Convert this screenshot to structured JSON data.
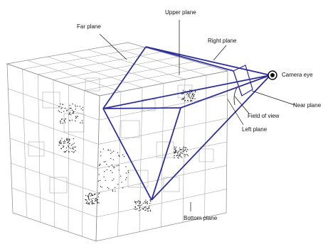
{
  "labels": {
    "upper_plane": "Upper plane",
    "far_plane": "Far plane",
    "right_plane": "Right plane",
    "camera_eye": "Camera eye",
    "near_plane": "Near plane",
    "field_of_view": "Field of view",
    "left_plane": "Left plane",
    "bottom_plane": "Bottom plane"
  },
  "colors": {
    "frustum": "#2e2f9a",
    "grid": "#8a8a8a",
    "text": "#111111",
    "background": "#ffffff"
  }
}
